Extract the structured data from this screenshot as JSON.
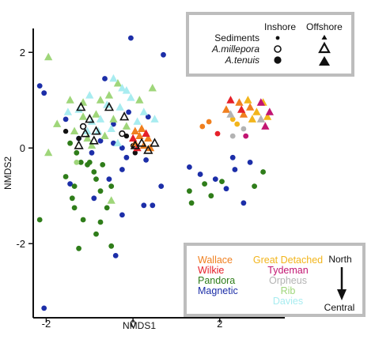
{
  "chart_data": {
    "type": "scatter",
    "xlabel": "NMDS1",
    "ylabel": "NMDS2",
    "xlim": [
      -2.3,
      3.5
    ],
    "ylim": [
      -3.55,
      2.5
    ],
    "xticks": [
      {
        "v": -2,
        "label": "-2"
      },
      {
        "v": 0,
        "label": "0"
      },
      {
        "v": 2,
        "label": "2"
      }
    ],
    "yticks": [
      {
        "v": 2,
        "label": "2"
      },
      {
        "v": 0,
        "label": "0"
      },
      {
        "v": -2,
        "label": "-2"
      }
    ],
    "colors": {
      "Wallace": "#f07f1e",
      "Wilkie": "#e6202a",
      "Pandora": "#2f7d1a",
      "Magnetic": "#1c2ea8",
      "Great Detached": "#f2b51c",
      "Tydeman": "#c21572",
      "Orpheus": "#b3b3b3",
      "Rib": "#9fd67a",
      "Davies": "#a8ecf0"
    },
    "legend_type": {
      "header_inshore": "Inshore",
      "header_offshore": "Offshore",
      "rows": [
        {
          "label": "Sediments"
        },
        {
          "label": "A.millepora"
        },
        {
          "label": "A.tenuis"
        }
      ]
    },
    "legend_sites": {
      "left": [
        {
          "name": "Wallace",
          "color": "#f07f1e"
        },
        {
          "name": "Wilkie",
          "color": "#e6202a"
        },
        {
          "name": "Pandora",
          "color": "#2f7d1a"
        },
        {
          "name": "Magnetic",
          "color": "#1c2ea8"
        }
      ],
      "right": [
        {
          "name": "Great Detached",
          "color": "#f2b51c"
        },
        {
          "name": "Tydeman",
          "color": "#c21572"
        },
        {
          "name": "Orpheus",
          "color": "#b3b3b3"
        },
        {
          "name": "Rib",
          "color": "#9fd67a"
        },
        {
          "name": "Davies",
          "color": "#a8ecf0"
        }
      ],
      "arrow_top": "North",
      "arrow_bottom": "Central"
    },
    "series": [
      {
        "site": "Magnetic",
        "shape": "circle",
        "points": [
          [
            -0.05,
            2.3
          ],
          [
            0.7,
            1.95
          ],
          [
            -2.15,
            1.3
          ],
          [
            -2.05,
            1.15
          ],
          [
            -0.65,
            1.45
          ],
          [
            -1.55,
            0.6
          ],
          [
            -0.1,
            0.75
          ],
          [
            0.35,
            0.65
          ],
          [
            -0.45,
            0.5
          ],
          [
            -1.25,
            0.2
          ],
          [
            -0.75,
            0.15
          ],
          [
            -0.45,
            0.1
          ],
          [
            -0.25,
            0.0
          ],
          [
            -0.15,
            -0.2
          ],
          [
            0.3,
            -0.25
          ],
          [
            -0.95,
            -0.1
          ],
          [
            -0.25,
            -0.45
          ],
          [
            -0.55,
            -0.65
          ],
          [
            0.65,
            -0.8
          ],
          [
            0.45,
            -1.2
          ],
          [
            -0.9,
            -1.05
          ],
          [
            -0.25,
            -1.4
          ],
          [
            -1.45,
            -0.75
          ],
          [
            0.25,
            -1.2
          ],
          [
            -0.4,
            -2.25
          ],
          [
            -2.05,
            -3.35
          ],
          [
            2.3,
            -0.2
          ],
          [
            2.7,
            -0.3
          ],
          [
            1.3,
            -0.4
          ],
          [
            1.55,
            -0.55
          ],
          [
            1.9,
            -0.65
          ],
          [
            2.35,
            -0.45
          ],
          [
            2.15,
            -0.85
          ],
          [
            2.55,
            -1.15
          ]
        ]
      },
      {
        "site": "Pandora",
        "shape": "circle",
        "points": [
          [
            -1.45,
            0.1
          ],
          [
            -1.3,
            -0.1
          ],
          [
            -1.2,
            -0.3
          ],
          [
            -1.05,
            -0.35
          ],
          [
            -0.9,
            -0.5
          ],
          [
            -0.7,
            -0.35
          ],
          [
            -1.55,
            -0.6
          ],
          [
            -1.35,
            -0.8
          ],
          [
            -0.85,
            -0.65
          ],
          [
            -0.5,
            -0.8
          ],
          [
            -0.75,
            -0.9
          ],
          [
            -1.4,
            -1.05
          ],
          [
            -1.35,
            -1.25
          ],
          [
            -1.15,
            -1.5
          ],
          [
            -0.85,
            -1.8
          ],
          [
            -1.25,
            -2.1
          ],
          [
            -0.75,
            -1.55
          ],
          [
            -0.6,
            -1.25
          ],
          [
            -2.15,
            -1.5
          ],
          [
            -0.5,
            -2.05
          ],
          [
            -1.0,
            -0.3
          ],
          [
            1.3,
            -0.9
          ],
          [
            1.65,
            -0.75
          ],
          [
            1.35,
            -1.15
          ],
          [
            1.8,
            -1.0
          ],
          [
            2.05,
            -0.7
          ],
          [
            3.0,
            -0.5
          ],
          [
            2.8,
            -0.8
          ]
        ]
      },
      {
        "site": "Wallace",
        "shape": "circle",
        "points": [
          [
            1.75,
            0.55
          ],
          [
            1.6,
            0.45
          ]
        ]
      },
      {
        "site": "Great Detached",
        "shape": "circle",
        "points": [
          [
            2.3,
            0.6
          ],
          [
            2.4,
            0.5
          ]
        ]
      },
      {
        "site": "Wilkie",
        "shape": "circle",
        "points": [
          [
            1.95,
            0.3
          ]
        ]
      },
      {
        "site": "Tydeman",
        "shape": "circle",
        "points": [
          [
            2.6,
            0.25
          ]
        ]
      },
      {
        "site": "Orpheus",
        "shape": "circle",
        "points": [
          [
            2.55,
            0.4
          ],
          [
            2.3,
            0.25
          ]
        ]
      },
      {
        "site": "Rib",
        "shape": "circle",
        "points": [
          [
            -1.3,
            -0.3
          ]
        ]
      },
      {
        "site": "Sediments",
        "shape": "black-circle",
        "points": [
          [
            -1.55,
            0.35
          ],
          [
            -1.25,
            0.2
          ],
          [
            -0.15,
            0.25
          ],
          [
            0.0,
            0.05
          ],
          [
            0.05,
            -0.1
          ]
        ]
      },
      {
        "site": "Sediments",
        "shape": "open-circle",
        "points": [
          [
            -1.15,
            0.45
          ],
          [
            -0.25,
            0.3
          ]
        ]
      },
      {
        "site": "Wallace",
        "shape": "triangle",
        "points": [
          [
            0.05,
            0.1
          ],
          [
            0.15,
            0.25
          ],
          [
            0.25,
            0.05
          ],
          [
            0.35,
            0.2
          ],
          [
            0.05,
            0.35
          ],
          [
            0.2,
            0.4
          ],
          [
            0.4,
            0.0
          ],
          [
            2.15,
            0.8
          ],
          [
            2.45,
            0.95
          ],
          [
            2.7,
            0.85
          ],
          [
            2.55,
            0.7
          ]
        ]
      },
      {
        "site": "Wilkie",
        "shape": "triangle",
        "points": [
          [
            0.1,
            0.0
          ],
          [
            0.3,
            0.3
          ],
          [
            0.0,
            0.2
          ],
          [
            2.25,
            1.0
          ],
          [
            2.5,
            0.8
          ]
        ]
      },
      {
        "site": "Great Detached",
        "shape": "triangle",
        "points": [
          [
            2.65,
            1.0
          ],
          [
            2.85,
            0.75
          ],
          [
            3.0,
            0.95
          ],
          [
            2.75,
            0.6
          ],
          [
            3.1,
            0.65
          ]
        ]
      },
      {
        "site": "Tydeman",
        "shape": "triangle",
        "points": [
          [
            2.95,
            0.95
          ],
          [
            3.15,
            0.75
          ],
          [
            3.05,
            0.45
          ]
        ]
      },
      {
        "site": "Orpheus",
        "shape": "triangle",
        "points": [
          [
            2.25,
            0.7
          ],
          [
            2.95,
            0.6
          ]
        ]
      },
      {
        "site": "Rib",
        "shape": "triangle",
        "points": [
          [
            -1.95,
            1.9
          ],
          [
            -1.15,
            0.65
          ],
          [
            -0.35,
            1.35
          ],
          [
            -0.55,
            1.1
          ],
          [
            0.45,
            1.25
          ],
          [
            -1.35,
            0.35
          ],
          [
            -1.15,
            0.95
          ],
          [
            -0.75,
            1.0
          ],
          [
            -0.85,
            0.7
          ],
          [
            -0.45,
            0.6
          ],
          [
            -1.75,
            0.5
          ],
          [
            -1.95,
            -0.1
          ],
          [
            -1.05,
            0.2
          ],
          [
            -0.65,
            0.25
          ],
          [
            0.15,
            1.0
          ],
          [
            -0.15,
            0.45
          ],
          [
            -1.45,
            1.0
          ],
          [
            -0.5,
            -1.1
          ],
          [
            -0.95,
            0.05
          ]
        ]
      },
      {
        "site": "Davies",
        "shape": "triangle",
        "points": [
          [
            -0.45,
            1.45
          ],
          [
            -0.25,
            1.25
          ],
          [
            -0.05,
            1.05
          ],
          [
            -1.0,
            1.1
          ],
          [
            -0.6,
            0.9
          ],
          [
            -0.3,
            0.85
          ],
          [
            -1.25,
            0.8
          ],
          [
            -0.95,
            0.55
          ],
          [
            -0.5,
            0.4
          ],
          [
            -1.05,
            0.35
          ],
          [
            -0.75,
            0.6
          ],
          [
            -0.35,
            0.1
          ],
          [
            0.5,
            0.6
          ],
          [
            0.25,
            0.75
          ],
          [
            -1.5,
            0.75
          ],
          [
            -0.15,
            1.2
          ],
          [
            -0.8,
            0.35
          ],
          [
            0.1,
            0.55
          ]
        ]
      },
      {
        "site": "Sediments",
        "shape": "open-triangle",
        "points": [
          [
            -1.2,
            0.85
          ],
          [
            -1.0,
            0.6
          ],
          [
            -0.85,
            0.35
          ],
          [
            -1.25,
            0.05
          ],
          [
            -0.9,
            0.15
          ],
          [
            -1.1,
            0.3
          ],
          [
            -0.55,
            0.85
          ],
          [
            -0.2,
            0.65
          ],
          [
            0.05,
            0.05
          ],
          [
            0.2,
            0.1
          ],
          [
            0.35,
            -0.05
          ],
          [
            0.5,
            0.1
          ]
        ]
      }
    ]
  }
}
